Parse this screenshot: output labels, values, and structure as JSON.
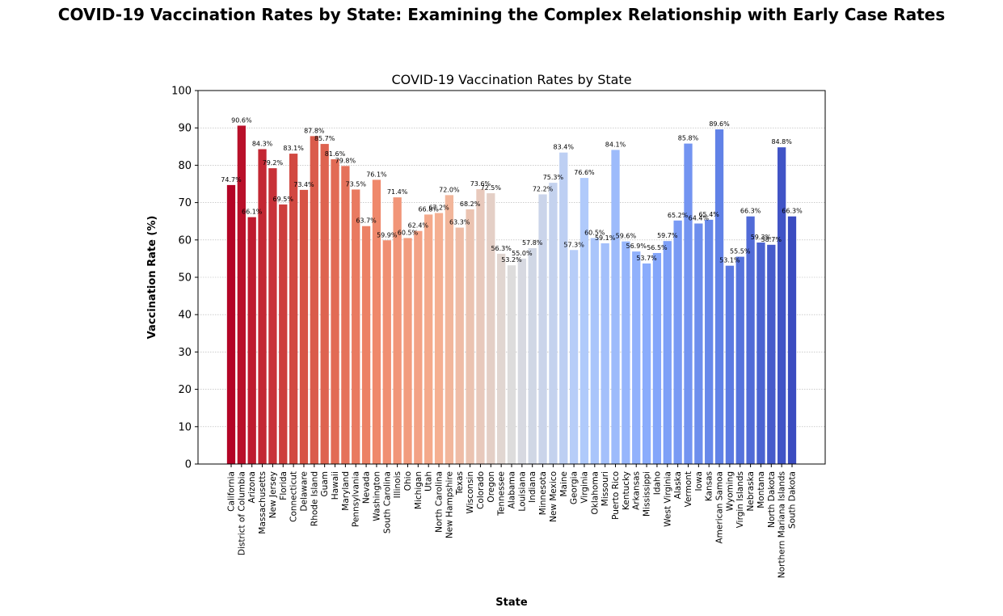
{
  "suptitle": "COVID-19 Vaccination Rates by State: Examining the Complex Relationship with Early Case Rates",
  "chart_data": {
    "type": "bar",
    "title": "COVID-19 Vaccination Rates by State",
    "xlabel": "State",
    "ylabel": "Vaccination Rate (%)",
    "ylim": [
      0,
      100
    ],
    "yticks": [
      0,
      10,
      20,
      30,
      40,
      50,
      60,
      70,
      80,
      90,
      100
    ],
    "grid": "y-dotted",
    "colormap": "coolwarm-reversed",
    "categories": [
      "California",
      "District of Columbia",
      "Arizona",
      "Massachusetts",
      "New Jersey",
      "Florida",
      "Connecticut",
      "Delaware",
      "Rhode Island",
      "Guam",
      "Hawaii",
      "Maryland",
      "Pennsylvania",
      "Nevada",
      "Washington",
      "South Carolina",
      "Illinois",
      "Ohio",
      "Michigan",
      "Utah",
      "North Carolina",
      "New Hampshire",
      "Texas",
      "Wisconsin",
      "Colorado",
      "Oregon",
      "Tennessee",
      "Alabama",
      "Louisiana",
      "Indiana",
      "Minnesota",
      "New Mexico",
      "Maine",
      "Georgia",
      "Virginia",
      "Oklahoma",
      "Missouri",
      "Puerto Rico",
      "Kentucky",
      "Arkansas",
      "Mississippi",
      "Idaho",
      "West Virginia",
      "Alaska",
      "Vermont",
      "Iowa",
      "Kansas",
      "American Samoa",
      "Wyoming",
      "Virgin Islands",
      "Nebraska",
      "Montana",
      "North Dakota",
      "Northern Mariana Islands",
      "South Dakota"
    ],
    "values": [
      74.7,
      90.6,
      66.1,
      84.3,
      79.2,
      69.5,
      83.1,
      73.4,
      87.8,
      85.7,
      81.6,
      79.8,
      73.5,
      63.7,
      76.1,
      59.9,
      71.4,
      60.5,
      62.4,
      66.8,
      67.2,
      72.0,
      63.3,
      68.2,
      73.6,
      72.5,
      56.3,
      53.2,
      55.0,
      57.8,
      72.2,
      75.3,
      83.4,
      57.3,
      76.6,
      60.5,
      59.1,
      84.1,
      59.6,
      56.9,
      53.7,
      56.5,
      59.7,
      65.2,
      85.8,
      64.4,
      65.4,
      89.6,
      53.1,
      55.5,
      66.3,
      59.3,
      58.7,
      84.8,
      66.3
    ],
    "data_labels": [
      "74.7%",
      "90.6%",
      "66.1%",
      "84.3%",
      "79.2%",
      "69.5%",
      "83.1%",
      "73.4%",
      "87.8%",
      "85.7%",
      "81.6%",
      "79.8%",
      "73.5%",
      "63.7%",
      "76.1%",
      "59.9%",
      "71.4%",
      "60.5%",
      "62.4%",
      "66.8%",
      "67.2%",
      "72.0%",
      "63.3%",
      "68.2%",
      "73.6%",
      "72.5%",
      "56.3%",
      "53.2%",
      "55.0%",
      "57.8%",
      "72.2%",
      "75.3%",
      "83.4%",
      "57.3%",
      "76.6%",
      "60.5%",
      "59.1%",
      "84.1%",
      "59.6%",
      "56.9%",
      "53.7%",
      "56.5%",
      "59.7%",
      "65.2%",
      "85.8%",
      "64.4%",
      "65.4%",
      "89.6%",
      "53.1%",
      "55.5%",
      "66.3%",
      "59.3%",
      "58.7%",
      "84.8%",
      "66.3%"
    ]
  }
}
